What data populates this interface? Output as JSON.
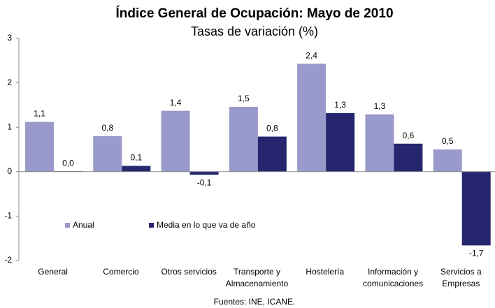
{
  "chart_data": {
    "type": "bar",
    "title": "Índice General de Ocupación: Mayo de 2010",
    "subtitle": "Tasas de variación (%)",
    "categories": [
      "General",
      "Comercio",
      "Otros servicios",
      "Transporte y\nAlmacenamiento",
      "Hostelería",
      "Información y\ncomunicaciones",
      "Servicios a\nEmpresas"
    ],
    "series": [
      {
        "name": "Anual",
        "color": "#9999cc",
        "values": [
          1.12,
          0.8,
          1.37,
          1.46,
          2.43,
          1.29,
          0.5
        ],
        "value_labels": [
          "1,1",
          "0,8",
          "1,4",
          "1,5",
          "2,4",
          "1,3",
          "0,5"
        ]
      },
      {
        "name": "Media en lo que va de año",
        "color": "#26266e",
        "values": [
          0.01,
          0.13,
          -0.07,
          0.79,
          1.32,
          0.63,
          -1.66
        ],
        "value_labels": [
          "0,0",
          "0,1",
          "-0,1",
          "0,8",
          "1,3",
          "0,6",
          "-1,7"
        ]
      }
    ],
    "ylim": [
      -2,
      3
    ],
    "yticks": [
      -2,
      -1,
      0,
      1,
      2,
      3
    ],
    "grid": false,
    "legend": "bottom-left",
    "source": "Fuentes: INE, ICANE."
  }
}
